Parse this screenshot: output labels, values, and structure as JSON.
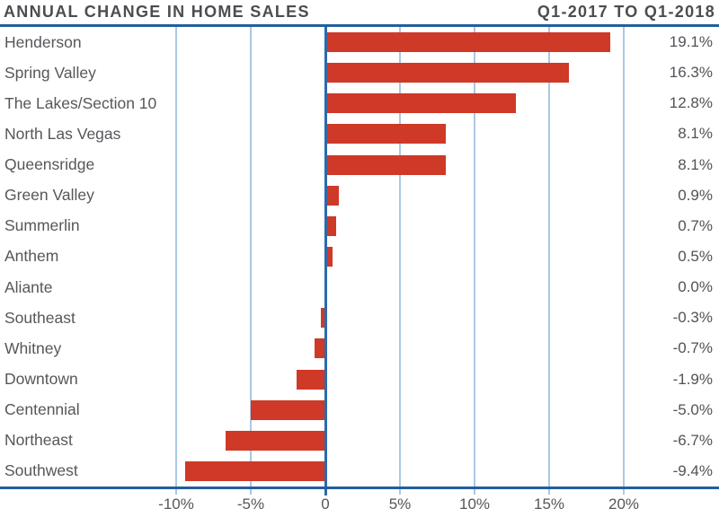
{
  "header": {
    "title_left": "ANNUAL CHANGE IN HOME SALES",
    "title_right": "Q1-2017 TO Q1-2018"
  },
  "chart_data": {
    "type": "bar",
    "orientation": "horizontal",
    "title": "ANNUAL CHANGE IN HOME SALES",
    "subtitle": "Q1-2017 TO Q1-2018",
    "categories": [
      "Henderson",
      "Spring Valley",
      "The Lakes/Section 10",
      "North Las Vegas",
      "Queensridge",
      "Green Valley",
      "Summerlin",
      "Anthem",
      "Aliante",
      "Southeast",
      "Whitney",
      "Downtown",
      "Centennial",
      "Northeast",
      "Southwest"
    ],
    "values": [
      19.1,
      16.3,
      12.8,
      8.1,
      8.1,
      0.9,
      0.7,
      0.5,
      0.0,
      -0.3,
      -0.7,
      -1.9,
      -5.0,
      -6.7,
      -9.4
    ],
    "value_labels": [
      "19.1%",
      "16.3%",
      "12.8%",
      "8.1%",
      "8.1%",
      "0.9%",
      "0.7%",
      "0.5%",
      "0.0%",
      "-0.3%",
      "-0.7%",
      "-1.9%",
      "-5.0%",
      "-6.7%",
      "-9.4%"
    ],
    "x_axis": {
      "ticks": [
        {
          "value": -10,
          "label": "-10%"
        },
        {
          "value": -5,
          "label": "-5%"
        },
        {
          "value": 0,
          "label": "0"
        },
        {
          "value": 5,
          "label": "5%"
        },
        {
          "value": 10,
          "label": "10%"
        },
        {
          "value": 15,
          "label": "15%"
        },
        {
          "value": 20,
          "label": "20%"
        }
      ],
      "range_shown": [
        -12.2,
        26.4
      ],
      "grid": true
    },
    "colors": {
      "bar": "#cf3927",
      "rule_line": "#235e9d",
      "zero_line": "#2b6aad",
      "gridline": "#abc8e2",
      "title_text": "#4c4d51",
      "category_text": "#56575b",
      "value_text": "#515257"
    }
  }
}
